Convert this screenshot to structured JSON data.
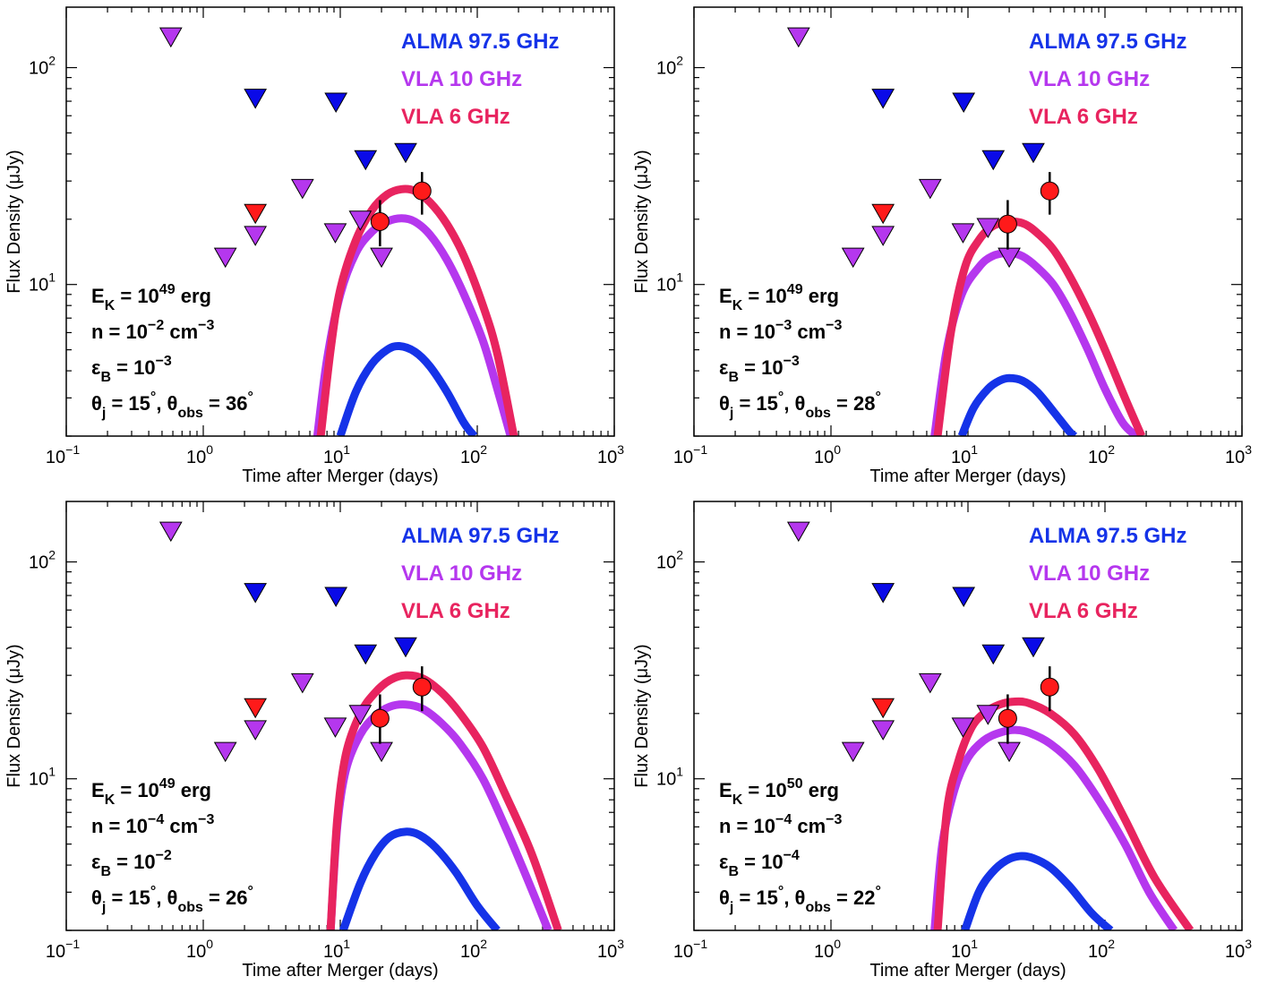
{
  "colors": {
    "alma": "#1533e8",
    "vla10": "#b537ee",
    "vla6": "#e8245f",
    "vla6_limit": "#ff1a1a",
    "alma_limit": "#0a0ae8",
    "vla10_limit": "#b537ee",
    "detection": "#ff1a1a"
  },
  "chart_data": [
    {
      "type": "line",
      "xlabel": "Time after Merger (days)",
      "ylabel": "Flux Density (μJy)",
      "xscale": "log",
      "yscale": "log",
      "xlim": [
        0.1,
        1000
      ],
      "ylim": [
        2.0,
        190
      ],
      "legend": [
        "ALMA 97.5 GHz",
        "VLA 10 GHz",
        "VLA 6 GHz"
      ],
      "legend_position": "top-right",
      "params": [
        {
          "pre": "E",
          "sub": "K",
          "mid": " = 10",
          "sup": "49",
          "post": " erg"
        },
        {
          "pre": "n = 10",
          "sup": "−2",
          "post": " cm",
          "sup2": "−3"
        },
        {
          "pre": "ε",
          "sub": "B",
          "mid": " = 10",
          "sup": "−3"
        },
        {
          "pre": "θ",
          "sub": "j",
          "mid": " = 15",
          "sup": "°",
          "mid2": ", θ",
          "sub2": "obs",
          "post": " = 36",
          "sup3": "°"
        }
      ],
      "series": [
        {
          "band": "alma",
          "x": [
            10,
            13,
            17,
            22,
            27,
            35,
            45,
            60,
            80,
            95
          ],
          "y": [
            2.0,
            3.2,
            4.3,
            5.0,
            5.2,
            4.9,
            4.2,
            3.2,
            2.3,
            2.0
          ]
        },
        {
          "band": "vla10",
          "x": [
            6.8,
            8,
            10,
            13,
            17,
            22,
            28,
            35,
            45,
            60,
            80,
            110,
            140,
            175
          ],
          "y": [
            2.0,
            4.5,
            9,
            14,
            17.5,
            19.5,
            20.2,
            19.5,
            17,
            13,
            9,
            5.5,
            3.3,
            2.0
          ]
        },
        {
          "band": "vla6",
          "x": [
            7.2,
            8.5,
            10,
            13,
            17,
            22,
            28,
            35,
            45,
            60,
            80,
            110,
            140,
            185
          ],
          "y": [
            2.0,
            5,
            9.5,
            16,
            22,
            26,
            27.5,
            27,
            24,
            19,
            13.5,
            8,
            4.8,
            2.0
          ]
        }
      ],
      "limits": [
        {
          "band": "vla10",
          "points": [
            [
              0.58,
              140
            ],
            [
              1.45,
              13.5
            ],
            [
              2.4,
              17
            ],
            [
              5.3,
              28
            ],
            [
              9.2,
              17.5
            ],
            [
              14,
              20
            ],
            [
              20,
              13.5
            ]
          ]
        },
        {
          "band": "alma",
          "points": [
            [
              2.4,
              73
            ],
            [
              9.3,
              70
            ],
            [
              15.3,
              38
            ],
            [
              30,
              41
            ]
          ]
        },
        {
          "band": "vla6",
          "points": [
            [
              2.4,
              21.5
            ]
          ]
        }
      ],
      "detections": [
        {
          "x": 19.5,
          "y": 19.5,
          "ylo": 15.0,
          "yhi": 24.5
        },
        {
          "x": 39.5,
          "y": 27.0,
          "ylo": 21.0,
          "yhi": 33.0
        }
      ]
    },
    {
      "type": "line",
      "xlabel": "Time after Merger (days)",
      "ylabel": "Flux Density (μJy)",
      "xscale": "log",
      "yscale": "log",
      "xlim": [
        0.1,
        1000
      ],
      "ylim": [
        2.0,
        190
      ],
      "legend": [
        "ALMA 97.5 GHz",
        "VLA 10 GHz",
        "VLA 6 GHz"
      ],
      "legend_position": "top-right",
      "params": [
        {
          "pre": "E",
          "sub": "K",
          "mid": " = 10",
          "sup": "49",
          "post": " erg"
        },
        {
          "pre": "n = 10",
          "sup": "−3",
          "post": " cm",
          "sup2": "−3"
        },
        {
          "pre": "ε",
          "sub": "B",
          "mid": " = 10",
          "sup": "−3"
        },
        {
          "pre": "θ",
          "sub": "j",
          "mid": " = 15",
          "sup": "°",
          "mid2": ", θ",
          "sub2": "obs",
          "post": " = 28",
          "sup3": "°"
        }
      ],
      "series": [
        {
          "band": "alma",
          "x": [
            9,
            11,
            14,
            17,
            20,
            25,
            32,
            42,
            55,
            60
          ],
          "y": [
            2.0,
            2.7,
            3.3,
            3.6,
            3.7,
            3.6,
            3.2,
            2.6,
            2.1,
            2.0
          ]
        },
        {
          "band": "vla10",
          "x": [
            5.7,
            7,
            9,
            12,
            15,
            20,
            25,
            32,
            42,
            55,
            75,
            100,
            135,
            170
          ],
          "y": [
            2.0,
            5,
            9,
            12,
            13.5,
            14,
            13.5,
            12,
            10,
            7.5,
            5,
            3.3,
            2.3,
            2.0
          ]
        },
        {
          "band": "vla6",
          "x": [
            6,
            7.5,
            9.5,
            12,
            15,
            20,
            26,
            33,
            42,
            55,
            75,
            100,
            140,
            185
          ],
          "y": [
            2.0,
            6,
            12,
            16,
            18.5,
            19.5,
            19,
            17,
            14.5,
            11,
            7.5,
            5,
            3,
            2.0
          ]
        }
      ],
      "limits": [
        {
          "band": "vla10",
          "points": [
            [
              0.58,
              140
            ],
            [
              1.45,
              13.5
            ],
            [
              2.4,
              17
            ],
            [
              5.3,
              28
            ],
            [
              9.2,
              17.5
            ],
            [
              14,
              18.5
            ],
            [
              20,
              13.5
            ]
          ]
        },
        {
          "band": "alma",
          "points": [
            [
              2.4,
              73
            ],
            [
              9.3,
              70
            ],
            [
              15.3,
              38
            ],
            [
              30,
              41
            ]
          ]
        },
        {
          "band": "vla6",
          "points": [
            [
              2.4,
              21.5
            ]
          ]
        }
      ],
      "detections": [
        {
          "x": 19.5,
          "y": 19.0,
          "ylo": 14.5,
          "yhi": 24.5
        },
        {
          "x": 39.5,
          "y": 27.0,
          "ylo": 21.0,
          "yhi": 33.0
        }
      ]
    },
    {
      "type": "line",
      "xlabel": "Time after Merger (days)",
      "ylabel": "Flux Density (μJy)",
      "xscale": "log",
      "yscale": "log",
      "xlim": [
        0.1,
        1000
      ],
      "ylim": [
        2.0,
        190
      ],
      "legend": [
        "ALMA 97.5 GHz",
        "VLA 10 GHz",
        "VLA 6 GHz"
      ],
      "legend_position": "top-right",
      "params": [
        {
          "pre": "E",
          "sub": "K",
          "mid": " = 10",
          "sup": "49",
          "post": " erg"
        },
        {
          "pre": "n = 10",
          "sup": "−4",
          "post": " cm",
          "sup2": "−3"
        },
        {
          "pre": "ε",
          "sub": "B",
          "mid": " = 10",
          "sup": "−2"
        },
        {
          "pre": "θ",
          "sub": "j",
          "mid": " = 15",
          "sup": "°",
          "mid2": ", θ",
          "sub2": "obs",
          "post": " = 26",
          "sup3": "°"
        }
      ],
      "series": [
        {
          "band": "alma",
          "x": [
            10.5,
            14,
            18,
            23,
            30,
            38,
            50,
            70,
            100,
            140
          ],
          "y": [
            2.0,
            3.3,
            4.5,
            5.4,
            5.7,
            5.5,
            4.8,
            3.7,
            2.6,
            2.0
          ]
        },
        {
          "band": "vla10",
          "x": [
            8.5,
            9.5,
            11,
            14,
            18,
            23,
            30,
            40,
            55,
            75,
            110,
            160,
            230,
            330
          ],
          "y": [
            2.0,
            6,
            11,
            16,
            19.5,
            21.5,
            22,
            21,
            18,
            14.5,
            10,
            6,
            3.5,
            2.0
          ]
        },
        {
          "band": "vla6",
          "x": [
            8.5,
            9.5,
            11,
            14,
            18,
            23,
            30,
            40,
            55,
            75,
            110,
            160,
            250,
            390
          ],
          "y": [
            2.0,
            6.5,
            13,
            20,
            25,
            28.5,
            30,
            29,
            25,
            20,
            14,
            8.5,
            4.5,
            2.0
          ]
        }
      ],
      "limits": [
        {
          "band": "vla10",
          "points": [
            [
              0.58,
              140
            ],
            [
              1.45,
              13.5
            ],
            [
              2.4,
              17
            ],
            [
              5.3,
              28
            ],
            [
              9.2,
              17.5
            ],
            [
              14,
              20
            ],
            [
              20,
              13.5
            ]
          ]
        },
        {
          "band": "alma",
          "points": [
            [
              2.4,
              73
            ],
            [
              9.3,
              70
            ],
            [
              15.3,
              38
            ],
            [
              30,
              41
            ]
          ]
        },
        {
          "band": "vla6",
          "points": [
            [
              2.4,
              21.5
            ]
          ]
        }
      ],
      "detections": [
        {
          "x": 19.5,
          "y": 19.0,
          "ylo": 14.5,
          "yhi": 24.5
        },
        {
          "x": 39.5,
          "y": 26.5,
          "ylo": 20.5,
          "yhi": 33.0
        }
      ]
    },
    {
      "type": "line",
      "xlabel": "Time after Merger (days)",
      "ylabel": "Flux Density (μJy)",
      "xscale": "log",
      "yscale": "log",
      "xlim": [
        0.1,
        1000
      ],
      "ylim": [
        2.0,
        190
      ],
      "legend": [
        "ALMA 97.5 GHz",
        "VLA 10 GHz",
        "VLA 6 GHz"
      ],
      "legend_position": "top-right",
      "params": [
        {
          "pre": "E",
          "sub": "K",
          "mid": " = 10",
          "sup": "50",
          "post": " erg"
        },
        {
          "pre": "n = 10",
          "sup": "−4",
          "post": " cm",
          "sup2": "−3"
        },
        {
          "pre": "ε",
          "sub": "B",
          "mid": " = 10",
          "sup": "−4"
        },
        {
          "pre": "θ",
          "sub": "j",
          "mid": " = 15",
          "sup": "°",
          "mid2": ", θ",
          "sub2": "obs",
          "post": " = 22",
          "sup3": "°"
        }
      ],
      "series": [
        {
          "band": "alma",
          "x": [
            9.5,
            12,
            15,
            19,
            24,
            30,
            40,
            55,
            80,
            110
          ],
          "y": [
            2.0,
            3.0,
            3.7,
            4.2,
            4.4,
            4.3,
            3.9,
            3.2,
            2.4,
            2.0
          ]
        },
        {
          "band": "vla10",
          "x": [
            5.7,
            6.5,
            8,
            10,
            13,
            17,
            22,
            28,
            40,
            60,
            90,
            140,
            210,
            320
          ],
          "y": [
            2.0,
            5,
            9,
            12.5,
            15,
            16.3,
            16.8,
            16.3,
            14.5,
            11.5,
            8,
            5,
            3,
            2.0
          ]
        },
        {
          "band": "vla6",
          "x": [
            6,
            7,
            8.5,
            10.5,
            13,
            17,
            22,
            28,
            40,
            60,
            90,
            140,
            230,
            420
          ],
          "y": [
            2.0,
            7,
            12,
            17,
            20,
            22,
            22.7,
            22.3,
            20,
            16,
            11,
            6.5,
            3.5,
            2.0
          ]
        }
      ],
      "limits": [
        {
          "band": "vla10",
          "points": [
            [
              0.58,
              140
            ],
            [
              1.45,
              13.5
            ],
            [
              2.4,
              17
            ],
            [
              5.3,
              28
            ],
            [
              9.2,
              17.5
            ],
            [
              14,
              20
            ],
            [
              20,
              13.5
            ]
          ]
        },
        {
          "band": "alma",
          "points": [
            [
              2.4,
              73
            ],
            [
              9.3,
              70
            ],
            [
              15.3,
              38
            ],
            [
              30,
              41
            ]
          ]
        },
        {
          "band": "vla6",
          "points": [
            [
              2.4,
              21.5
            ]
          ]
        }
      ],
      "detections": [
        {
          "x": 19.5,
          "y": 19.0,
          "ylo": 14.5,
          "yhi": 24.5
        },
        {
          "x": 39.5,
          "y": 26.5,
          "ylo": 20.5,
          "yhi": 33.0
        }
      ]
    }
  ]
}
